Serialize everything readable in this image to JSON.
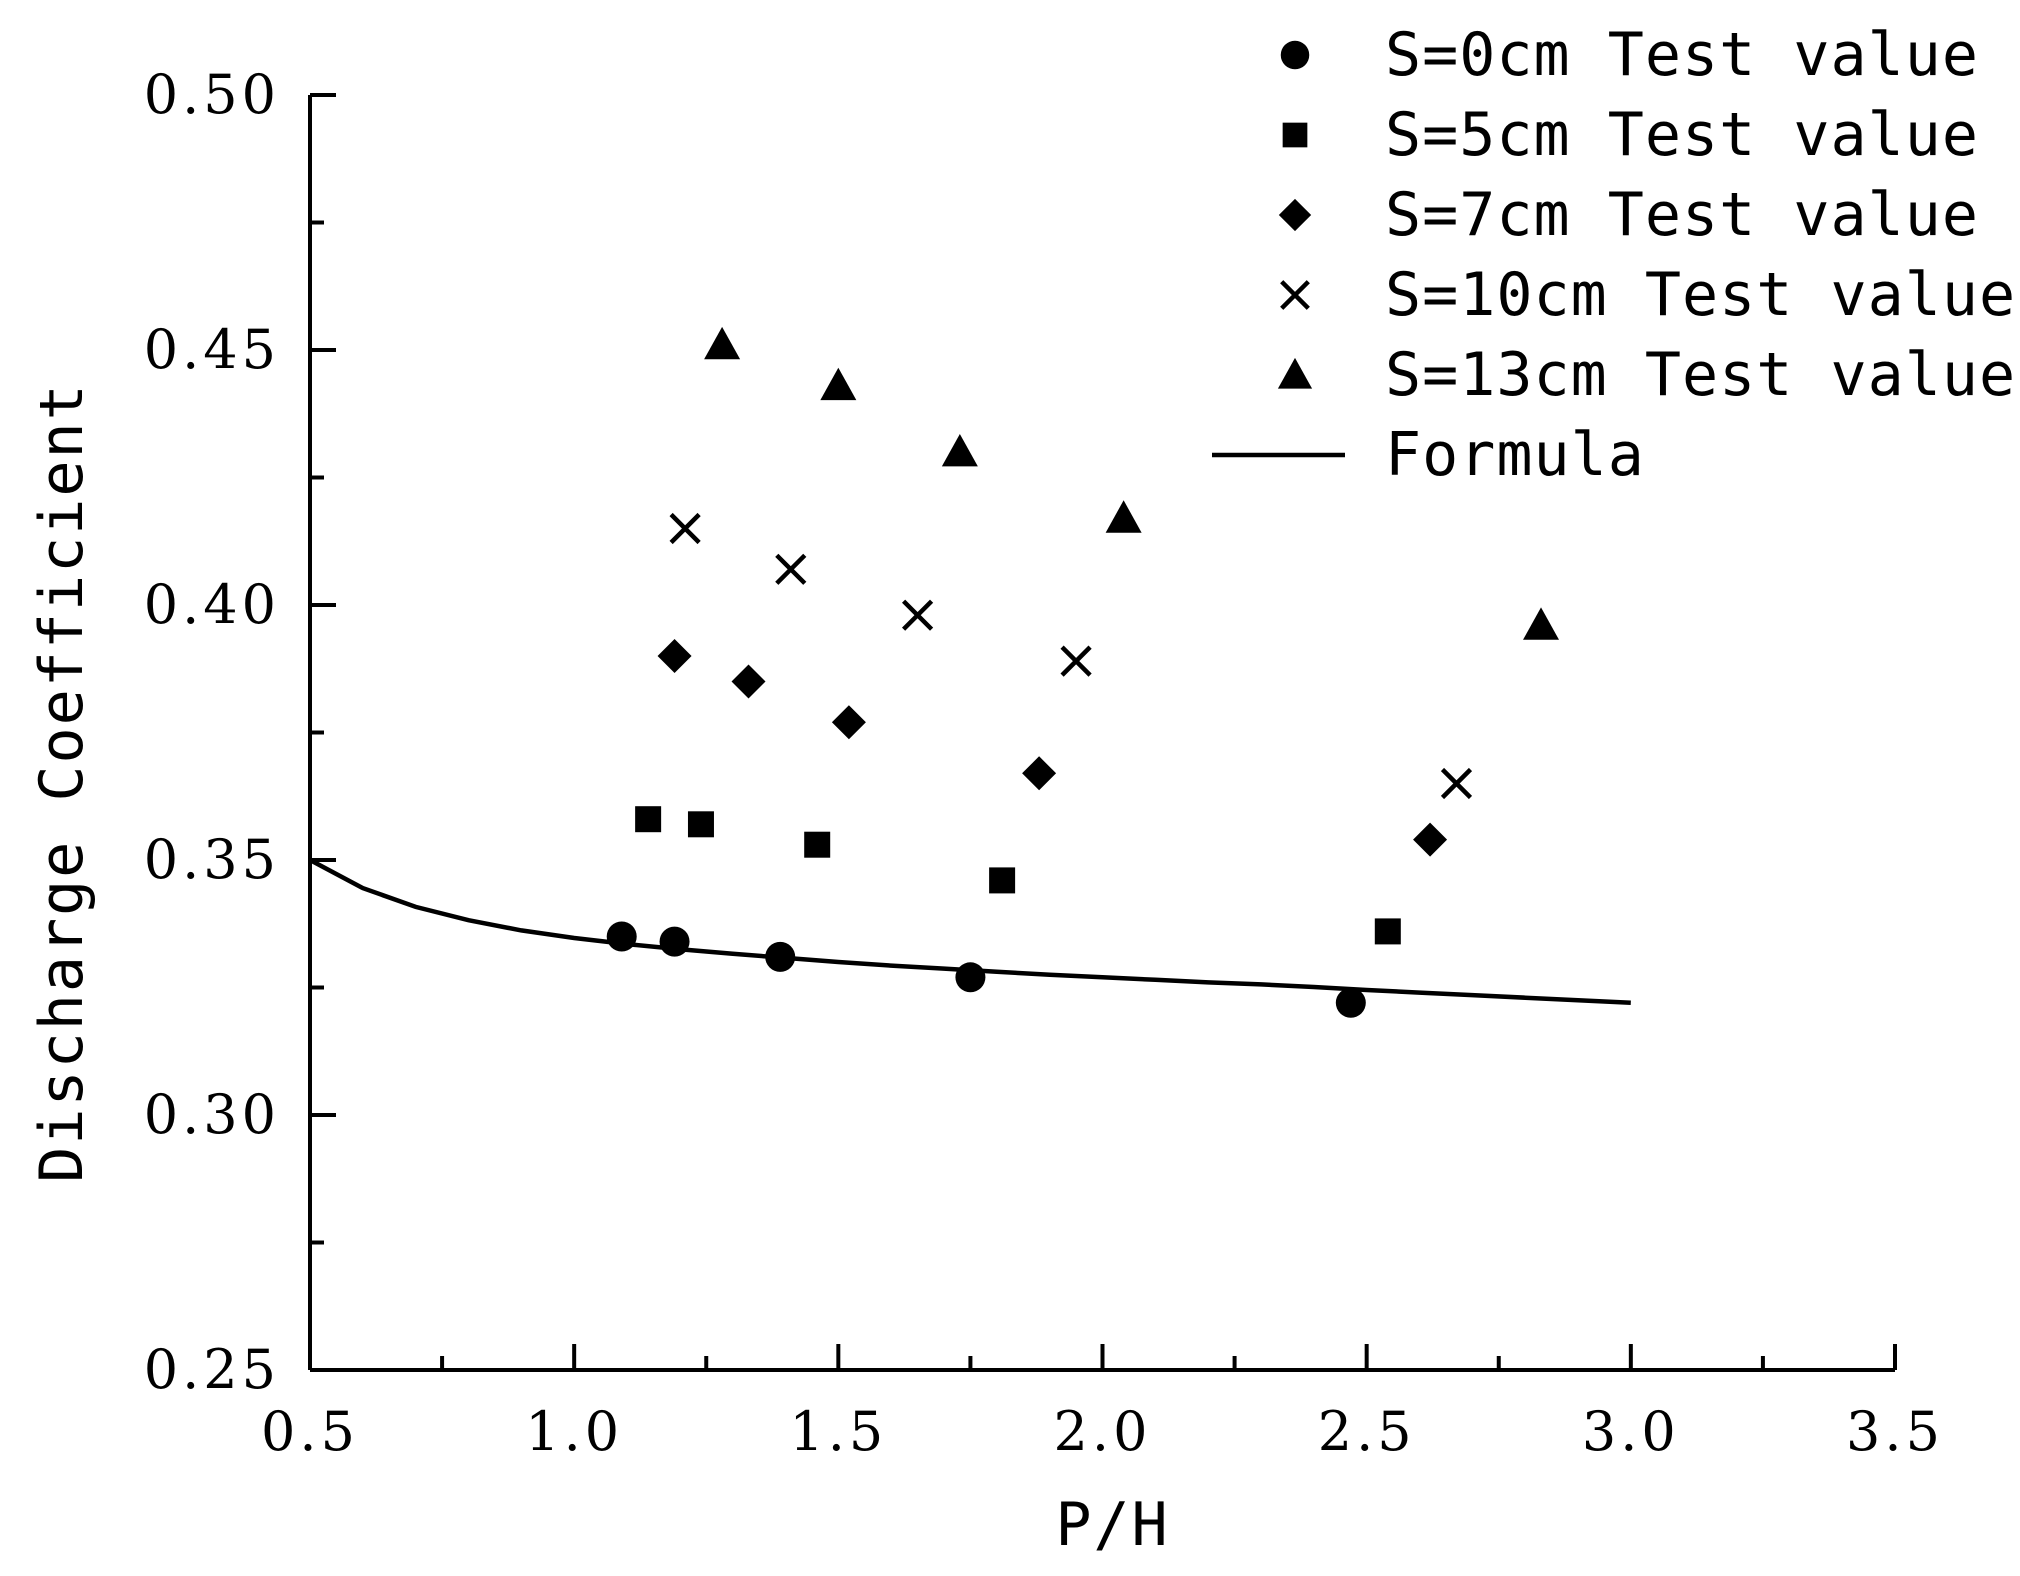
{
  "chart_data": {
    "type": "scatter",
    "xlabel": "P/H",
    "ylabel": "Discharge Coefficient",
    "xlim": [
      0.5,
      3.5
    ],
    "ylim": [
      0.25,
      0.5
    ],
    "xticks": [
      0.5,
      1.0,
      1.5,
      2.0,
      2.5,
      3.0,
      3.5
    ],
    "xtick_labels": [
      "0.5",
      "1.0",
      "1.5",
      "2.0",
      "2.5",
      "3.0",
      "3.5"
    ],
    "yticks": [
      0.25,
      0.3,
      0.35,
      0.4,
      0.45,
      0.5
    ],
    "ytick_labels": [
      "0.25",
      "0.30",
      "0.35",
      "0.40",
      "0.45",
      "0.50"
    ],
    "legend_position": "top-right",
    "series": [
      {
        "name": "S=0cm Test value",
        "marker": "circle",
        "x": [
          1.09,
          1.19,
          1.39,
          1.75,
          2.47
        ],
        "y": [
          0.335,
          0.334,
          0.331,
          0.327,
          0.322
        ]
      },
      {
        "name": "S=5cm Test value",
        "marker": "square",
        "x": [
          1.14,
          1.24,
          1.46,
          1.81,
          2.54
        ],
        "y": [
          0.358,
          0.357,
          0.353,
          0.346,
          0.336
        ]
      },
      {
        "name": "S=7cm Test value",
        "marker": "diamond",
        "x": [
          1.19,
          1.33,
          1.52,
          1.88,
          2.62
        ],
        "y": [
          0.39,
          0.385,
          0.377,
          0.367,
          0.354
        ]
      },
      {
        "name": "S=10cm Test value",
        "marker": "cross",
        "x": [
          1.21,
          1.41,
          1.65,
          1.95,
          2.67
        ],
        "y": [
          0.415,
          0.407,
          0.398,
          0.389,
          0.365
        ]
      },
      {
        "name": "S=13cm Test value",
        "marker": "triangle",
        "x": [
          1.28,
          1.5,
          1.73,
          2.04,
          2.83
        ],
        "y": [
          0.451,
          0.443,
          0.43,
          0.417,
          0.396
        ]
      },
      {
        "name": "Formula",
        "marker": "line",
        "x": [
          0.5,
          0.6,
          0.7,
          0.8,
          0.9,
          1.0,
          1.1,
          1.2,
          1.3,
          1.4,
          1.5,
          1.6,
          1.7,
          1.8,
          1.9,
          2.0,
          2.1,
          2.2,
          2.3,
          2.4,
          2.5,
          2.6,
          2.7,
          2.8,
          2.9,
          3.0
        ],
        "y": [
          0.35,
          0.3445,
          0.3408,
          0.3382,
          0.3362,
          0.3347,
          0.3335,
          0.3325,
          0.3316,
          0.3308,
          0.33,
          0.3293,
          0.3287,
          0.3281,
          0.3275,
          0.327,
          0.3265,
          0.326,
          0.3256,
          0.3251,
          0.3245,
          0.324,
          0.3235,
          0.323,
          0.3225,
          0.322
        ]
      }
    ]
  }
}
